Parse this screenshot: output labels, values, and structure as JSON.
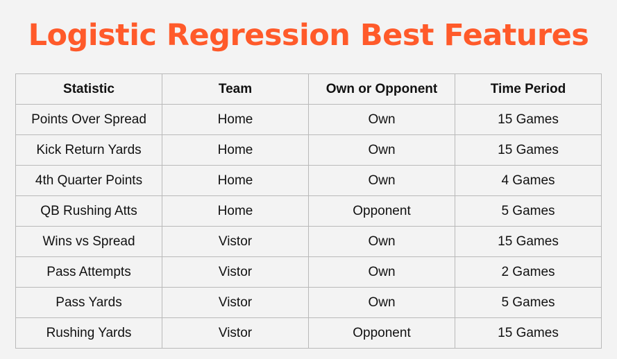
{
  "title": "Logistic Regression Best Features",
  "table": {
    "headers": [
      "Statistic",
      "Team",
      "Own or Opponent",
      "Time Period"
    ],
    "rows": [
      [
        "Points Over Spread",
        "Home",
        "Own",
        "15 Games"
      ],
      [
        "Kick Return Yards",
        "Home",
        "Own",
        "15 Games"
      ],
      [
        "4th Quarter Points",
        "Home",
        "Own",
        "4 Games"
      ],
      [
        "QB Rushing Atts",
        "Home",
        "Opponent",
        "5 Games"
      ],
      [
        "Wins vs Spread",
        "Vistor",
        "Own",
        "15 Games"
      ],
      [
        "Pass Attempts",
        "Vistor",
        "Own",
        "2 Games"
      ],
      [
        "Pass Yards",
        "Vistor",
        "Own",
        "5 Games"
      ],
      [
        "Rushing Yards",
        "Vistor",
        "Opponent",
        "15 Games"
      ]
    ]
  },
  "colors": {
    "title": "#ff5a2a",
    "background": "#f3f3f3",
    "border": "#b9b9b9",
    "text": "#111111"
  }
}
